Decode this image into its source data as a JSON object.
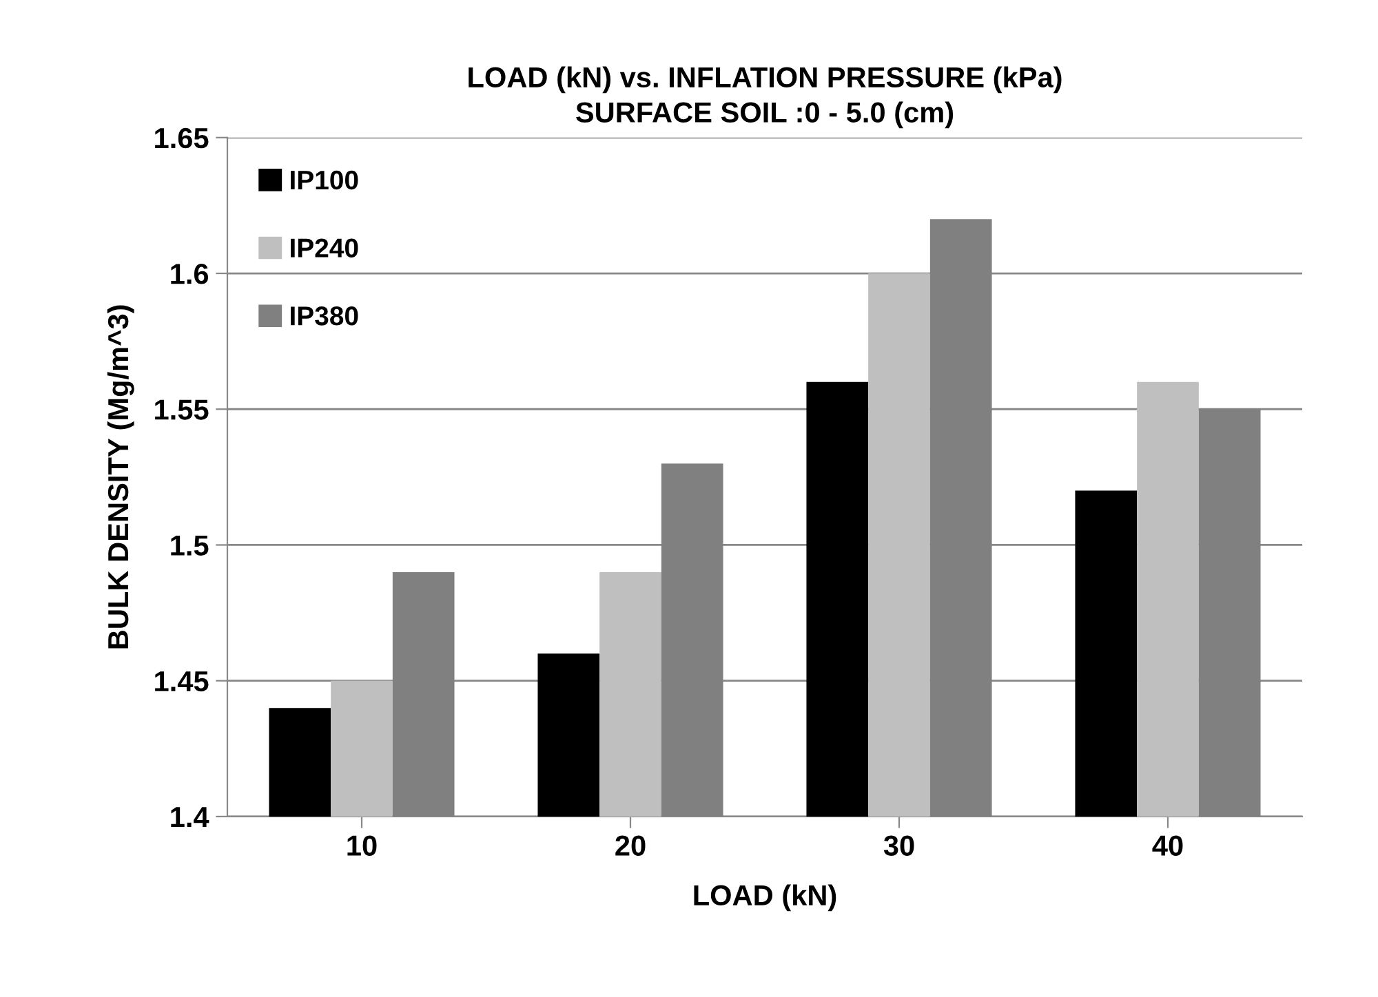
{
  "chart_data": {
    "type": "bar",
    "title": "LOAD (kN) vs. INFLATION PRESSURE (kPa)\nSURFACE SOIL :0 - 5.0 (cm)",
    "xlabel": "LOAD (kN)",
    "ylabel": "BULK DENSITY (Mg/m^3)",
    "categories": [
      "10",
      "20",
      "30",
      "40"
    ],
    "series": [
      {
        "name": "IP100",
        "color": "#000000",
        "values": [
          1.44,
          1.46,
          1.56,
          1.52
        ]
      },
      {
        "name": "IP240",
        "color": "#bfbfbf",
        "values": [
          1.45,
          1.49,
          1.6,
          1.56
        ]
      },
      {
        "name": "IP380",
        "color": "#808080",
        "values": [
          1.49,
          1.53,
          1.62,
          1.55
        ]
      }
    ],
    "ylim": [
      1.4,
      1.65
    ],
    "yticks": [
      1.4,
      1.45,
      1.5,
      1.55,
      1.6,
      1.65
    ],
    "grid": "y",
    "legend": "top left"
  }
}
